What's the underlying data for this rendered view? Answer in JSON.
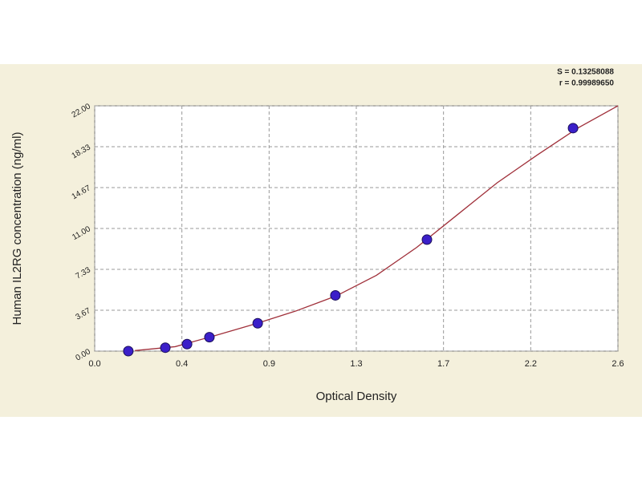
{
  "chart_data": {
    "type": "scatter",
    "annotations": [
      "S = 0.13258088",
      "r = 0.99989650"
    ],
    "x_label": "Optical Density",
    "y_label": "Human IL2RG concentration (ng/ml)",
    "xlim": [
      0,
      2.6
    ],
    "xticks": [
      {
        "value": 0,
        "label": "0.0"
      },
      {
        "value": 0.4333,
        "label": "0.4"
      },
      {
        "value": 0.8667,
        "label": "0.9"
      },
      {
        "value": 1.3,
        "label": "1.3"
      },
      {
        "value": 1.7333,
        "label": "1.7"
      },
      {
        "value": 2.1667,
        "label": "2.2"
      },
      {
        "value": 2.6,
        "label": "2.6"
      }
    ],
    "ylim": [
      0,
      22
    ],
    "yticks": [
      {
        "value": 0,
        "label": "0.00"
      },
      3.67,
      7.33,
      {
        "value": 11,
        "label": "11.00"
      },
      14.67,
      18.33,
      {
        "value": 22,
        "label": "22.00"
      }
    ],
    "grid": true,
    "series": [
      {
        "type": "line",
        "color": "#a0303a",
        "x": [
          0.2,
          0.4,
          0.6,
          0.8,
          1.0,
          1.2,
          1.4,
          1.6,
          1.8,
          2.0,
          2.2,
          2.4,
          2.6
        ],
        "values": [
          0.05,
          0.4,
          1.4,
          2.45,
          3.6,
          4.95,
          6.8,
          9.3,
          12.2,
          15.1,
          17.6,
          20.0,
          22.0
        ]
      },
      {
        "type": "scatter",
        "color": "#3b1fc9",
        "x": [
          0.167,
          0.351,
          0.459,
          0.57,
          0.81,
          1.196,
          1.651,
          2.377
        ],
        "values": [
          0,
          0.31,
          0.63,
          1.25,
          2.5,
          5,
          10,
          20
        ]
      }
    ]
  }
}
